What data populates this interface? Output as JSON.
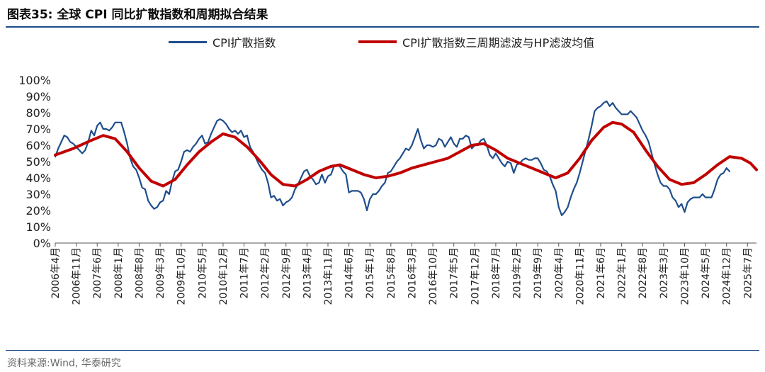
{
  "title": "图表35:  全球 CPI 同比扩散指数和周期拟合结果",
  "source": "资料来源:Wind, 华泰研究",
  "colors": {
    "accent": "#1f4e8c",
    "series1": "#1f4e8c",
    "series2": "#c00000"
  },
  "chart_data": {
    "type": "line",
    "title": "",
    "xlabel": "",
    "ylabel": "",
    "ylim": [
      0,
      100
    ],
    "y_unit": "%",
    "y_ticks": [
      "0%",
      "10%",
      "20%",
      "30%",
      "40%",
      "50%",
      "60%",
      "70%",
      "80%",
      "90%",
      "100%"
    ],
    "x_tick_labels": [
      "2006年4月",
      "2006年11月",
      "2007年6月",
      "2008年1月",
      "2008年8月",
      "2009年3月",
      "2009年10月",
      "2010年5月",
      "2010年12月",
      "2011年7月",
      "2012年2月",
      "2012年9月",
      "2013年4月",
      "2013年11月",
      "2014年6月",
      "2015年1月",
      "2015年8月",
      "2016年3月",
      "2016年10月",
      "2017年5月",
      "2017年12月",
      "2018年7月",
      "2019年2月",
      "2019年9月",
      "2020年4月",
      "2020年11月",
      "2021年6月",
      "2022年1月",
      "2022年8月",
      "2023年3月",
      "2023年10月",
      "2024年5月",
      "2024年12月",
      "2025年7月"
    ],
    "x_start": "2006-04",
    "x_end": "2025-10",
    "legend": "top",
    "grid": false,
    "series": [
      {
        "name": "CPI扩散指数",
        "color": "#1f4e8c",
        "points": [
          [
            "2006-04",
            53
          ],
          [
            "2006-05",
            58
          ],
          [
            "2006-06",
            62
          ],
          [
            "2006-07",
            66
          ],
          [
            "2006-08",
            65
          ],
          [
            "2006-09",
            62
          ],
          [
            "2006-10",
            61
          ],
          [
            "2006-11",
            59
          ],
          [
            "2006-12",
            57
          ],
          [
            "2007-01",
            55
          ],
          [
            "2007-02",
            57
          ],
          [
            "2007-03",
            62
          ],
          [
            "2007-04",
            69
          ],
          [
            "2007-05",
            66
          ],
          [
            "2007-06",
            72
          ],
          [
            "2007-07",
            74
          ],
          [
            "2007-08",
            70
          ],
          [
            "2007-09",
            70
          ],
          [
            "2007-10",
            69
          ],
          [
            "2007-11",
            71
          ],
          [
            "2007-12",
            74
          ],
          [
            "2008-01",
            74
          ],
          [
            "2008-02",
            74
          ],
          [
            "2008-03",
            68
          ],
          [
            "2008-04",
            61
          ],
          [
            "2008-05",
            52
          ],
          [
            "2008-06",
            47
          ],
          [
            "2008-07",
            45
          ],
          [
            "2008-08",
            40
          ],
          [
            "2008-09",
            34
          ],
          [
            "2008-10",
            33
          ],
          [
            "2008-11",
            26
          ],
          [
            "2008-12",
            23
          ],
          [
            "2009-01",
            21
          ],
          [
            "2009-02",
            22
          ],
          [
            "2009-03",
            25
          ],
          [
            "2009-04",
            26
          ],
          [
            "2009-05",
            32
          ],
          [
            "2009-06",
            30
          ],
          [
            "2009-07",
            38
          ],
          [
            "2009-08",
            44
          ],
          [
            "2009-09",
            45
          ],
          [
            "2009-10",
            50
          ],
          [
            "2009-11",
            56
          ],
          [
            "2009-12",
            57
          ],
          [
            "2010-01",
            56
          ],
          [
            "2010-02",
            59
          ],
          [
            "2010-03",
            61
          ],
          [
            "2010-04",
            64
          ],
          [
            "2010-05",
            66
          ],
          [
            "2010-06",
            61
          ],
          [
            "2010-07",
            62
          ],
          [
            "2010-08",
            67
          ],
          [
            "2010-09",
            71
          ],
          [
            "2010-10",
            75
          ],
          [
            "2010-11",
            76
          ],
          [
            "2010-12",
            75
          ],
          [
            "2011-01",
            73
          ],
          [
            "2011-02",
            70
          ],
          [
            "2011-03",
            68
          ],
          [
            "2011-04",
            69
          ],
          [
            "2011-05",
            67
          ],
          [
            "2011-06",
            69
          ],
          [
            "2011-07",
            65
          ],
          [
            "2011-08",
            66
          ],
          [
            "2011-09",
            59
          ],
          [
            "2011-10",
            56
          ],
          [
            "2011-11",
            52
          ],
          [
            "2011-12",
            48
          ],
          [
            "2012-01",
            45
          ],
          [
            "2012-02",
            43
          ],
          [
            "2012-03",
            37
          ],
          [
            "2012-04",
            28
          ],
          [
            "2012-05",
            29
          ],
          [
            "2012-06",
            26
          ],
          [
            "2012-07",
            27
          ],
          [
            "2012-08",
            23
          ],
          [
            "2012-09",
            25
          ],
          [
            "2012-10",
            26
          ],
          [
            "2012-11",
            28
          ],
          [
            "2012-12",
            33
          ],
          [
            "2013-01",
            36
          ],
          [
            "2013-02",
            40
          ],
          [
            "2013-03",
            44
          ],
          [
            "2013-04",
            45
          ],
          [
            "2013-05",
            41
          ],
          [
            "2013-06",
            39
          ],
          [
            "2013-07",
            36
          ],
          [
            "2013-08",
            37
          ],
          [
            "2013-09",
            42
          ],
          [
            "2013-10",
            37
          ],
          [
            "2013-11",
            41
          ],
          [
            "2013-12",
            42
          ],
          [
            "2014-01",
            47
          ],
          [
            "2014-02",
            48
          ],
          [
            "2014-03",
            47
          ],
          [
            "2014-04",
            44
          ],
          [
            "2014-05",
            42
          ],
          [
            "2014-06",
            31
          ],
          [
            "2014-07",
            32
          ],
          [
            "2014-08",
            32
          ],
          [
            "2014-09",
            32
          ],
          [
            "2014-10",
            31
          ],
          [
            "2014-11",
            27
          ],
          [
            "2014-12",
            20
          ],
          [
            "2015-01",
            27
          ],
          [
            "2015-02",
            30
          ],
          [
            "2015-03",
            30
          ],
          [
            "2015-04",
            32
          ],
          [
            "2015-05",
            35
          ],
          [
            "2015-06",
            37
          ],
          [
            "2015-07",
            43
          ],
          [
            "2015-08",
            44
          ],
          [
            "2015-09",
            47
          ],
          [
            "2015-10",
            50
          ],
          [
            "2015-11",
            52
          ],
          [
            "2015-12",
            55
          ],
          [
            "2016-01",
            58
          ],
          [
            "2016-02",
            57
          ],
          [
            "2016-03",
            60
          ],
          [
            "2016-04",
            65
          ],
          [
            "2016-05",
            70
          ],
          [
            "2016-06",
            63
          ],
          [
            "2016-07",
            58
          ],
          [
            "2016-08",
            60
          ],
          [
            "2016-09",
            60
          ],
          [
            "2016-10",
            59
          ],
          [
            "2016-11",
            60
          ],
          [
            "2016-12",
            64
          ],
          [
            "2017-01",
            63
          ],
          [
            "2017-02",
            59
          ],
          [
            "2017-03",
            62
          ],
          [
            "2017-04",
            65
          ],
          [
            "2017-05",
            61
          ],
          [
            "2017-06",
            59
          ],
          [
            "2017-07",
            64
          ],
          [
            "2017-08",
            64
          ],
          [
            "2017-09",
            66
          ],
          [
            "2017-10",
            65
          ],
          [
            "2017-11",
            58
          ],
          [
            "2017-12",
            60
          ],
          [
            "2018-01",
            60
          ],
          [
            "2018-02",
            63
          ],
          [
            "2018-03",
            64
          ],
          [
            "2018-04",
            60
          ],
          [
            "2018-05",
            54
          ],
          [
            "2018-06",
            52
          ],
          [
            "2018-07",
            55
          ],
          [
            "2018-08",
            52
          ],
          [
            "2018-09",
            49
          ],
          [
            "2018-10",
            47
          ],
          [
            "2018-11",
            50
          ],
          [
            "2018-12",
            49
          ],
          [
            "2019-01",
            43
          ],
          [
            "2019-02",
            48
          ],
          [
            "2019-03",
            49
          ],
          [
            "2019-04",
            51
          ],
          [
            "2019-05",
            52
          ],
          [
            "2019-06",
            51
          ],
          [
            "2019-07",
            51
          ],
          [
            "2019-08",
            52
          ],
          [
            "2019-09",
            52
          ],
          [
            "2019-10",
            49
          ],
          [
            "2019-11",
            45
          ],
          [
            "2019-12",
            44
          ],
          [
            "2020-01",
            41
          ],
          [
            "2020-02",
            36
          ],
          [
            "2020-03",
            32
          ],
          [
            "2020-04",
            22
          ],
          [
            "2020-05",
            17
          ],
          [
            "2020-06",
            19
          ],
          [
            "2020-07",
            22
          ],
          [
            "2020-08",
            28
          ],
          [
            "2020-09",
            33
          ],
          [
            "2020-10",
            37
          ],
          [
            "2020-11",
            43
          ],
          [
            "2020-12",
            50
          ],
          [
            "2021-01",
            57
          ],
          [
            "2021-02",
            64
          ],
          [
            "2021-03",
            72
          ],
          [
            "2021-04",
            81
          ],
          [
            "2021-05",
            83
          ],
          [
            "2021-06",
            84
          ],
          [
            "2021-07",
            86
          ],
          [
            "2021-08",
            87
          ],
          [
            "2021-09",
            84
          ],
          [
            "2021-10",
            86
          ],
          [
            "2021-11",
            83
          ],
          [
            "2021-12",
            81
          ],
          [
            "2022-01",
            79
          ],
          [
            "2022-02",
            79
          ],
          [
            "2022-03",
            79
          ],
          [
            "2022-04",
            81
          ],
          [
            "2022-05",
            79
          ],
          [
            "2022-06",
            77
          ],
          [
            "2022-07",
            73
          ],
          [
            "2022-08",
            69
          ],
          [
            "2022-09",
            66
          ],
          [
            "2022-10",
            62
          ],
          [
            "2022-11",
            55
          ],
          [
            "2022-12",
            48
          ],
          [
            "2023-01",
            42
          ],
          [
            "2023-02",
            37
          ],
          [
            "2023-03",
            35
          ],
          [
            "2023-04",
            35
          ],
          [
            "2023-05",
            33
          ],
          [
            "2023-06",
            28
          ],
          [
            "2023-07",
            26
          ],
          [
            "2023-08",
            22
          ],
          [
            "2023-09",
            24
          ],
          [
            "2023-10",
            19
          ],
          [
            "2023-11",
            25
          ],
          [
            "2023-12",
            27
          ],
          [
            "2024-01",
            28
          ],
          [
            "2024-02",
            28
          ],
          [
            "2024-03",
            28
          ],
          [
            "2024-04",
            30
          ],
          [
            "2024-05",
            28
          ],
          [
            "2024-06",
            28
          ],
          [
            "2024-07",
            28
          ],
          [
            "2024-08",
            33
          ],
          [
            "2024-09",
            39
          ],
          [
            "2024-10",
            42
          ],
          [
            "2024-11",
            43
          ],
          [
            "2024-12",
            46
          ],
          [
            "2025-01",
            44
          ]
        ]
      },
      {
        "name": "CPI扩散指数三周期滤波与HP滤波均值",
        "color": "#c00000",
        "points": [
          [
            "2006-04",
            54
          ],
          [
            "2006-10",
            58
          ],
          [
            "2007-04",
            63
          ],
          [
            "2007-08",
            66
          ],
          [
            "2007-12",
            64
          ],
          [
            "2008-04",
            56
          ],
          [
            "2008-08",
            46
          ],
          [
            "2008-12",
            38
          ],
          [
            "2009-04",
            35
          ],
          [
            "2009-08",
            39
          ],
          [
            "2009-12",
            48
          ],
          [
            "2010-04",
            56
          ],
          [
            "2010-08",
            62
          ],
          [
            "2010-12",
            67
          ],
          [
            "2011-04",
            65
          ],
          [
            "2011-08",
            59
          ],
          [
            "2011-12",
            51
          ],
          [
            "2012-04",
            42
          ],
          [
            "2012-08",
            36
          ],
          [
            "2012-12",
            35
          ],
          [
            "2013-04",
            39
          ],
          [
            "2013-08",
            44
          ],
          [
            "2013-12",
            47
          ],
          [
            "2014-03",
            48
          ],
          [
            "2014-07",
            45
          ],
          [
            "2014-11",
            42
          ],
          [
            "2015-03",
            40
          ],
          [
            "2015-07",
            41
          ],
          [
            "2015-11",
            43
          ],
          [
            "2016-03",
            46
          ],
          [
            "2016-07",
            48
          ],
          [
            "2016-11",
            50
          ],
          [
            "2017-03",
            52
          ],
          [
            "2017-07",
            56
          ],
          [
            "2017-11",
            60
          ],
          [
            "2018-03",
            61
          ],
          [
            "2018-07",
            57
          ],
          [
            "2018-11",
            52
          ],
          [
            "2019-03",
            49
          ],
          [
            "2019-07",
            46
          ],
          [
            "2019-11",
            43
          ],
          [
            "2020-03",
            40
          ],
          [
            "2020-07",
            43
          ],
          [
            "2020-11",
            52
          ],
          [
            "2021-03",
            63
          ],
          [
            "2021-07",
            71
          ],
          [
            "2021-10",
            74
          ],
          [
            "2022-01",
            73
          ],
          [
            "2022-05",
            68
          ],
          [
            "2022-09",
            57
          ],
          [
            "2023-01",
            47
          ],
          [
            "2023-05",
            39
          ],
          [
            "2023-09",
            36
          ],
          [
            "2024-01",
            37
          ],
          [
            "2024-05",
            42
          ],
          [
            "2024-09",
            48
          ],
          [
            "2025-01",
            53
          ],
          [
            "2025-05",
            52
          ],
          [
            "2025-08",
            49
          ],
          [
            "2025-10",
            45
          ]
        ]
      }
    ]
  }
}
